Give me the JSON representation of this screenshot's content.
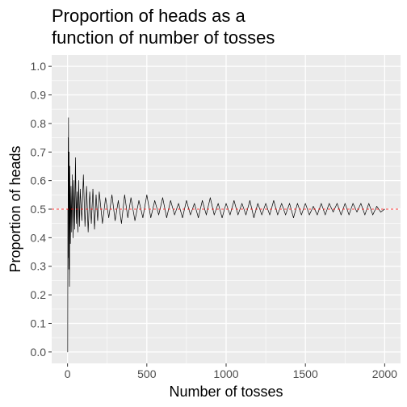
{
  "chart_data": {
    "type": "line",
    "title_lines": [
      "Proportion of heads as a",
      "function of number of tosses"
    ],
    "xlabel": "Number of tosses",
    "ylabel": "Proportion of heads",
    "xlim": [
      -100,
      2100
    ],
    "ylim": [
      -0.04,
      1.04
    ],
    "x_ticks": [
      0,
      500,
      1000,
      1500,
      2000
    ],
    "x_tick_labels": [
      "0",
      "500",
      "1000",
      "1500",
      "2000"
    ],
    "y_ticks": [
      0.0,
      0.1,
      0.2,
      0.3,
      0.4,
      0.5,
      0.6,
      0.7,
      0.8,
      0.9,
      1.0
    ],
    "y_tick_labels": [
      "0.0",
      "0.1",
      "0.2",
      "0.3",
      "0.4",
      "0.5",
      "0.6",
      "0.7",
      "0.8",
      "0.9",
      "1.0"
    ],
    "grid": true,
    "reference_line": {
      "y": 0.5,
      "color": "#ff0000",
      "style": "dashed"
    },
    "series": [
      {
        "color": "#000000",
        "x": [
          1,
          2,
          3,
          4,
          5,
          6,
          8,
          10,
          12,
          15,
          18,
          22,
          26,
          30,
          35,
          40,
          45,
          50,
          55,
          60,
          65,
          70,
          75,
          80,
          90,
          100,
          110,
          120,
          130,
          140,
          150,
          160,
          170,
          180,
          190,
          200,
          220,
          240,
          260,
          280,
          300,
          320,
          340,
          360,
          380,
          400,
          425,
          450,
          475,
          500,
          525,
          550,
          575,
          600,
          625,
          650,
          675,
          700,
          725,
          750,
          775,
          800,
          825,
          850,
          875,
          900,
          925,
          950,
          975,
          1000,
          1025,
          1050,
          1075,
          1100,
          1125,
          1150,
          1175,
          1200,
          1225,
          1250,
          1275,
          1300,
          1325,
          1350,
          1375,
          1400,
          1425,
          1450,
          1475,
          1500,
          1525,
          1550,
          1575,
          1600,
          1625,
          1650,
          1675,
          1700,
          1725,
          1750,
          1775,
          1800,
          1825,
          1850,
          1875,
          1900,
          1925,
          1950,
          1975,
          2000
        ],
        "y": [
          0.0,
          0.5,
          0.33,
          0.75,
          0.6,
          0.82,
          0.29,
          0.7,
          0.23,
          0.65,
          0.38,
          0.58,
          0.42,
          0.62,
          0.4,
          0.6,
          0.43,
          0.68,
          0.45,
          0.56,
          0.42,
          0.6,
          0.44,
          0.57,
          0.46,
          0.62,
          0.44,
          0.58,
          0.42,
          0.56,
          0.45,
          0.57,
          0.43,
          0.55,
          0.46,
          0.56,
          0.45,
          0.54,
          0.47,
          0.55,
          0.46,
          0.53,
          0.45,
          0.55,
          0.47,
          0.54,
          0.46,
          0.53,
          0.47,
          0.55,
          0.47,
          0.53,
          0.48,
          0.54,
          0.47,
          0.53,
          0.48,
          0.52,
          0.47,
          0.53,
          0.48,
          0.52,
          0.47,
          0.53,
          0.48,
          0.54,
          0.48,
          0.52,
          0.47,
          0.52,
          0.48,
          0.53,
          0.48,
          0.52,
          0.48,
          0.53,
          0.47,
          0.52,
          0.48,
          0.52,
          0.48,
          0.53,
          0.48,
          0.52,
          0.48,
          0.52,
          0.47,
          0.52,
          0.48,
          0.52,
          0.48,
          0.51,
          0.48,
          0.52,
          0.48,
          0.52,
          0.49,
          0.52,
          0.48,
          0.52,
          0.48,
          0.52,
          0.49,
          0.52,
          0.48,
          0.52,
          0.48,
          0.51,
          0.49,
          0.5
        ]
      }
    ]
  }
}
